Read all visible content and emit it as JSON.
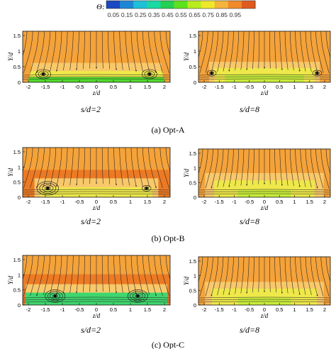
{
  "colorbar": {
    "variable": "Θ:",
    "ticks": [
      "0.05",
      "0.15",
      "0.25",
      "0.35",
      "0.45",
      "0.55",
      "0.65",
      "0.75",
      "0.85",
      "0.95"
    ],
    "colors": [
      "#1a49c0",
      "#1f86d6",
      "#1fc0d8",
      "#1bd9a2",
      "#22d054",
      "#5ee21e",
      "#b8ec1e",
      "#efe82a",
      "#f4b43c",
      "#f08a2a",
      "#e05a1e"
    ]
  },
  "axes": {
    "ylabel": "Y/d",
    "xlabel": "z/d",
    "yticks": [
      "0",
      "0.5",
      "1",
      "1.5"
    ],
    "xticks": [
      "-2",
      "-1.5",
      "-1",
      "-0.5",
      "0",
      "0.5",
      "1",
      "1.5",
      "2"
    ]
  },
  "panels": [
    {
      "id": "a",
      "caption": "(a) Opt-A",
      "left_label": "s/d=2",
      "right_label": "s/d=8"
    },
    {
      "id": "b",
      "caption": "(b) Opt-B",
      "left_label": "s/d=2",
      "right_label": "s/d=8"
    },
    {
      "id": "c",
      "caption": "(c) Opt-C",
      "left_label": "s/d=2",
      "right_label": "s/d=8"
    }
  ]
}
